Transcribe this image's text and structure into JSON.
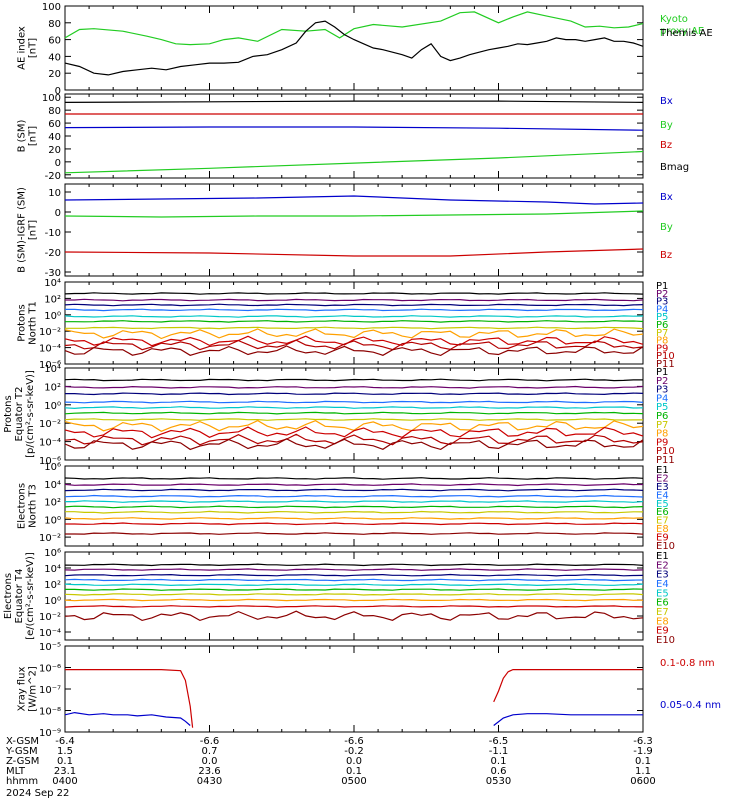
{
  "chart_data": {
    "type": "line",
    "panels": [
      {
        "id": "ae",
        "ylabel": [
          "AE index",
          "[nT]"
        ],
        "ylim": [
          0,
          100
        ],
        "scale": "linear",
        "ticks": [
          "0",
          "20",
          "40",
          "60",
          "80",
          "100"
        ],
        "tickvals": [
          0,
          20,
          40,
          60,
          80,
          100
        ],
        "series": [
          {
            "name": "Kyoto proxy AE",
            "label_lines": [
              "Kyoto",
              "proxy AE"
            ],
            "color": "#22cc22",
            "x": [
              0,
              3,
              6,
              12,
              17,
              20,
              23,
              26,
              30,
              33,
              36,
              40,
              45,
              50,
              54,
              57,
              60,
              64,
              70,
              78,
              82,
              85,
              90,
              93,
              96,
              100,
              105,
              108,
              111,
              114,
              117,
              120
            ],
            "y": [
              62,
              72,
              73,
              70,
              64,
              60,
              55,
              54,
              55,
              60,
              62,
              58,
              72,
              70,
              72,
              62,
              73,
              78,
              75,
              82,
              92,
              93,
              80,
              87,
              93,
              88,
              82,
              75,
              76,
              74,
              75,
              79
            ]
          },
          {
            "name": "Themis AE",
            "label_lines": [
              "Themis AE"
            ],
            "color": "#000000",
            "x": [
              0,
              3,
              6,
              9,
              12,
              15,
              18,
              21,
              24,
              27,
              30,
              33,
              36,
              39,
              42,
              45,
              48,
              50,
              52,
              54,
              56,
              58,
              60,
              62,
              64,
              66,
              68,
              70,
              72,
              74,
              76,
              78,
              80,
              82,
              84,
              86,
              88,
              90,
              92,
              94,
              96,
              98,
              100,
              102,
              104,
              106,
              108,
              110,
              112,
              114,
              116,
              118,
              120
            ],
            "y": [
              32,
              28,
              20,
              18,
              22,
              24,
              26,
              24,
              28,
              30,
              32,
              32,
              33,
              40,
              42,
              48,
              56,
              70,
              80,
              82,
              75,
              66,
              60,
              55,
              50,
              48,
              45,
              42,
              38,
              48,
              55,
              40,
              35,
              38,
              42,
              45,
              48,
              50,
              52,
              55,
              54,
              56,
              58,
              62,
              60,
              60,
              58,
              60,
              62,
              58,
              58,
              56,
              52
            ]
          }
        ]
      },
      {
        "id": "bsm",
        "ylabel": [
          "B (SM)",
          "[nT]"
        ],
        "ylim": [
          -25,
          105
        ],
        "scale": "linear",
        "ticks": [
          "-20",
          "0",
          "20",
          "40",
          "60",
          "80",
          "100"
        ],
        "tickvals": [
          -20,
          0,
          20,
          40,
          60,
          80,
          100
        ],
        "series": [
          {
            "name": "Bx",
            "color": "#0000cc",
            "x": [
              0,
              30,
              60,
              90,
              120
            ],
            "y": [
              53,
              54,
              54,
              52,
              49
            ]
          },
          {
            "name": "By",
            "color": "#22cc22",
            "x": [
              0,
              30,
              60,
              90,
              120
            ],
            "y": [
              -17,
              -10,
              -2,
              6,
              16
            ]
          },
          {
            "name": "Bz",
            "color": "#cc0000",
            "x": [
              0,
              30,
              60,
              90,
              120
            ],
            "y": [
              74,
              74,
              74,
              74,
              74
            ]
          },
          {
            "name": "Bmag",
            "color": "#000000",
            "x": [
              0,
              30,
              60,
              90,
              120
            ],
            "y": [
              92,
              93,
              94,
              94,
              92
            ]
          }
        ]
      },
      {
        "id": "bigrf",
        "ylabel": [
          "B (SM)-IGRF (SM)",
          "[nT]"
        ],
        "ylim": [
          -32,
          14
        ],
        "scale": "linear",
        "ticks": [
          "-30",
          "-20",
          "-10",
          "0",
          "10"
        ],
        "tickvals": [
          -30,
          -20,
          -10,
          0,
          10
        ],
        "series": [
          {
            "name": "Bx",
            "color": "#0000cc",
            "x": [
              0,
              20,
              40,
              60,
              70,
              80,
              100,
              110,
              120
            ],
            "y": [
              6,
              6.5,
              7,
              8,
              7,
              6,
              5,
              4,
              4.5
            ]
          },
          {
            "name": "By",
            "color": "#22cc22",
            "x": [
              0,
              20,
              40,
              60,
              80,
              100,
              120
            ],
            "y": [
              -2,
              -2.5,
              -2,
              -2,
              -1.5,
              -1,
              0.5
            ]
          },
          {
            "name": "Bz",
            "color": "#cc0000",
            "x": [
              0,
              30,
              60,
              80,
              100,
              120
            ],
            "y": [
              -20,
              -20.5,
              -22,
              -22,
              -20,
              -18.5
            ]
          }
        ]
      },
      {
        "id": "pn1",
        "ylabel": [
          "Protons",
          "North T1"
        ],
        "ylim": [
          -6,
          4
        ],
        "scale": "log",
        "ticks": [
          "10⁻⁶",
          "10⁻⁴",
          "10⁻²",
          "10⁰",
          "10²",
          "10⁴"
        ],
        "tickvals": [
          -6,
          -4,
          -2,
          0,
          2,
          4
        ],
        "series": [
          {
            "name": "P1",
            "color": "#000000",
            "base": 2.6
          },
          {
            "name": "P2",
            "color": "#6a006a",
            "base": 1.8
          },
          {
            "name": "P3",
            "color": "#00007a",
            "base": 1.2
          },
          {
            "name": "P4",
            "color": "#1e6fff",
            "base": 0.6
          },
          {
            "name": "P5",
            "color": "#00c8c8",
            "base": -0.2
          },
          {
            "name": "P6",
            "color": "#00b400",
            "base": -0.8
          },
          {
            "name": "P7",
            "color": "#c8c800",
            "base": -1.6
          },
          {
            "name": "P8",
            "color": "#ffa000",
            "base": -2.3
          },
          {
            "name": "P9",
            "color": "#cc0000",
            "base": -3.2
          },
          {
            "name": "P10",
            "color": "#b40000",
            "base": -3.7
          },
          {
            "name": "P11",
            "color": "#8b0000",
            "base": -4.4
          }
        ]
      },
      {
        "id": "pe2",
        "ylabel": [
          "Protons",
          "Equator T2",
          "[p/(cm²-s-sr-keV)]"
        ],
        "ylim": [
          -6,
          4
        ],
        "scale": "log",
        "ticks": [
          "10⁻⁶",
          "10⁻⁴",
          "10⁻²",
          "10⁰",
          "10²",
          "10⁴"
        ],
        "tickvals": [
          -6,
          -4,
          -2,
          0,
          2,
          4
        ],
        "series": [
          {
            "name": "P1",
            "color": "#000000",
            "base": 2.7
          },
          {
            "name": "P2",
            "color": "#6a006a",
            "base": 1.9
          },
          {
            "name": "P3",
            "color": "#00007a",
            "base": 1.2
          },
          {
            "name": "P4",
            "color": "#1e6fff",
            "base": 0.3
          },
          {
            "name": "P5",
            "color": "#00c8c8",
            "base": -0.3
          },
          {
            "name": "P6",
            "color": "#00b400",
            "base": -0.9
          },
          {
            "name": "P7",
            "color": "#c8c800",
            "base": -1.6
          },
          {
            "name": "P8",
            "color": "#ffa000",
            "base": -2.3
          },
          {
            "name": "P9",
            "color": "#cc0000",
            "base": -3.0
          },
          {
            "name": "P10",
            "color": "#b40000",
            "base": -3.8
          },
          {
            "name": "P11",
            "color": "#8b0000",
            "base": -4.3
          }
        ]
      },
      {
        "id": "en3",
        "ylabel": [
          "Electrons",
          "North T3"
        ],
        "ylim": [
          -3,
          6
        ],
        "scale": "log",
        "ticks": [
          "10⁻²",
          "10⁰",
          "10²",
          "10⁴",
          "10⁶"
        ],
        "tickvals": [
          -2,
          0,
          2,
          4,
          6
        ],
        "series": [
          {
            "name": "E1",
            "color": "#000000",
            "base": 4.6
          },
          {
            "name": "E2",
            "color": "#6a006a",
            "base": 3.9
          },
          {
            "name": "E3",
            "color": "#00007a",
            "base": 3.3
          },
          {
            "name": "E4",
            "color": "#1e6fff",
            "base": 2.6
          },
          {
            "name": "E5",
            "color": "#00c8c8",
            "base": 2.0
          },
          {
            "name": "E6",
            "color": "#00b400",
            "base": 1.4
          },
          {
            "name": "E7",
            "color": "#c8c800",
            "base": 0.8
          },
          {
            "name": "E8",
            "color": "#ffa000",
            "base": 0.1
          },
          {
            "name": "E9",
            "color": "#cc0000",
            "base": -0.5
          },
          {
            "name": "E10",
            "color": "#8b0000",
            "base": -1.6
          }
        ]
      },
      {
        "id": "ee4",
        "ylabel": [
          "Electrons",
          "Equator T4",
          "[e/(cm²-s-sr-keV)]"
        ],
        "ylim": [
          -5,
          6
        ],
        "scale": "log",
        "ticks": [
          "10⁻⁴",
          "10⁻²",
          "10⁰",
          "10²",
          "10⁴",
          "10⁶"
        ],
        "tickvals": [
          -4,
          -2,
          0,
          2,
          4,
          6
        ],
        "series": [
          {
            "name": "E1",
            "color": "#000000",
            "base": 4.4
          },
          {
            "name": "E2",
            "color": "#6a006a",
            "base": 3.8
          },
          {
            "name": "E3",
            "color": "#00007a",
            "base": 3.1
          },
          {
            "name": "E4",
            "color": "#1e6fff",
            "base": 2.5
          },
          {
            "name": "E5",
            "color": "#00c8c8",
            "base": 1.9
          },
          {
            "name": "E6",
            "color": "#00b400",
            "base": 1.3
          },
          {
            "name": "E7",
            "color": "#c8c800",
            "base": 0.7
          },
          {
            "name": "E8",
            "color": "#ffa000",
            "base": 0.0
          },
          {
            "name": "E9",
            "color": "#cc0000",
            "base": -0.8
          },
          {
            "name": "E10",
            "color": "#8b0000",
            "base": -2.0
          }
        ]
      },
      {
        "id": "xray",
        "ylabel": [
          "Xray flux",
          "[W/m^2]"
        ],
        "ylim": [
          -9,
          -5
        ],
        "scale": "log",
        "ticks": [
          "10⁻⁹",
          "10⁻⁸",
          "10⁻⁷",
          "10⁻⁶",
          "10⁻⁵"
        ],
        "tickvals": [
          -9,
          -8,
          -7,
          -6,
          -5
        ],
        "series": [
          {
            "name": "0.1-0.8 nm",
            "color": "#cc0000",
            "segments": [
              {
                "x": [
                  0,
                  5,
                  12,
                  20,
                  24,
                  25,
                  26,
                  26.5
                ],
                "y": [
                  -6.1,
                  -6.1,
                  -6.1,
                  -6.1,
                  -6.15,
                  -6.6,
                  -7.8,
                  -8.8
                ]
              },
              {
                "x": [
                  89,
                  90,
                  91,
                  92,
                  93,
                  100,
                  110,
                  120
                ],
                "y": [
                  -7.6,
                  -7.1,
                  -6.5,
                  -6.2,
                  -6.1,
                  -6.1,
                  -6.1,
                  -6.1
                ]
              }
            ]
          },
          {
            "name": "0.05-0.4 nm",
            "color": "#0000cc",
            "segments": [
              {
                "x": [
                  0,
                  2,
                  5,
                  8,
                  10,
                  13,
                  15,
                  18,
                  21,
                  24,
                  25,
                  26
                ],
                "y": [
                  -8.2,
                  -8.1,
                  -8.2,
                  -8.15,
                  -8.2,
                  -8.2,
                  -8.25,
                  -8.2,
                  -8.3,
                  -8.35,
                  -8.5,
                  -8.7
                ]
              },
              {
                "x": [
                  89,
                  91,
                  93,
                  96,
                  100,
                  105,
                  110,
                  115,
                  120
                ],
                "y": [
                  -8.7,
                  -8.35,
                  -8.2,
                  -8.15,
                  -8.15,
                  -8.2,
                  -8.2,
                  -8.2,
                  -8.2
                ]
              }
            ]
          }
        ]
      }
    ],
    "x_axis": {
      "tick_x": [
        0,
        30,
        60,
        90,
        120
      ],
      "rows": [
        {
          "label": "X-GSM",
          "values": [
            "-6.4",
            "-6.6",
            "-6.6",
            "-6.5",
            "-6.3"
          ]
        },
        {
          "label": "Y-GSM",
          "values": [
            "1.5",
            "0.7",
            "-0.2",
            "-1.1",
            "-1.9"
          ]
        },
        {
          "label": "Z-GSM",
          "values": [
            "0.1",
            "0.0",
            "0.0",
            "0.1",
            "0.1"
          ]
        },
        {
          "label": "MLT",
          "values": [
            "23.1",
            "23.6",
            "0.1",
            "0.6",
            "1.1"
          ]
        },
        {
          "label": "hhmm",
          "values": [
            "0400",
            "0430",
            "0500",
            "0530",
            "0600"
          ]
        }
      ],
      "date": "2024 Sep 22"
    }
  }
}
